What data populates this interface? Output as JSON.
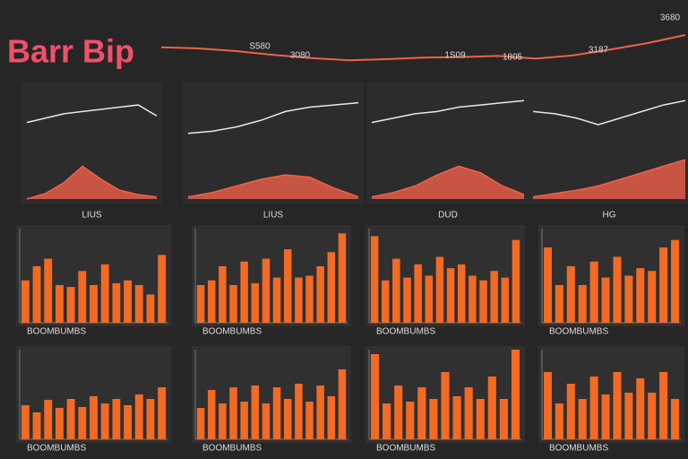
{
  "title": "Barr Bip",
  "chart_data": [
    {
      "type": "line",
      "ylim": [
        0,
        100
      ],
      "annotations": [
        "3680",
        "S580",
        "3080",
        "1S09",
        "1805",
        "3187"
      ],
      "series": [
        {
          "color": "#f0604a",
          "values": [
            62,
            60,
            55,
            48,
            42,
            38,
            40,
            43,
            44,
            46,
            41,
            47,
            58,
            70,
            85
          ]
        }
      ]
    },
    {
      "type": "line",
      "ylim": [
        0,
        100
      ],
      "xlabel": "LIUS",
      "series": [
        {
          "color": "#e8e8e8",
          "values": [
            70,
            74,
            78,
            80,
            82,
            84,
            86,
            76
          ]
        },
        {
          "color": "#f0604a",
          "fill": true,
          "values": [
            0,
            5,
            15,
            30,
            18,
            8,
            4,
            2
          ]
        }
      ]
    },
    {
      "type": "line",
      "ylim": [
        0,
        100
      ],
      "xlabel": "LIUS",
      "series": [
        {
          "color": "#e8e8e8",
          "values": [
            60,
            62,
            66,
            72,
            80,
            84,
            86,
            88
          ]
        },
        {
          "color": "#f0604a",
          "fill": true,
          "values": [
            2,
            6,
            12,
            18,
            22,
            20,
            10,
            2
          ]
        }
      ]
    },
    {
      "type": "line",
      "ylim": [
        0,
        100
      ],
      "xlabel": "DUD",
      "series": [
        {
          "color": "#e8e8e8",
          "values": [
            70,
            74,
            78,
            80,
            84,
            86,
            88,
            90
          ]
        },
        {
          "color": "#f0604a",
          "fill": true,
          "values": [
            2,
            6,
            12,
            22,
            30,
            24,
            12,
            4
          ]
        }
      ]
    },
    {
      "type": "line",
      "ylim": [
        0,
        100
      ],
      "xlabel": "HG",
      "series": [
        {
          "color": "#e8e8e8",
          "values": [
            80,
            78,
            74,
            68,
            74,
            80,
            86,
            90
          ]
        },
        {
          "color": "#f0604a",
          "fill": true,
          "values": [
            2,
            5,
            8,
            12,
            18,
            24,
            30,
            36
          ]
        }
      ]
    },
    {
      "type": "bar",
      "ylim": [
        0,
        100
      ],
      "color": "#f26a24",
      "xlabel": "BOOMBUMBS",
      "values": [
        45,
        60,
        68,
        40,
        38,
        55,
        40,
        62,
        42,
        45,
        40,
        30,
        72
      ]
    },
    {
      "type": "bar",
      "ylim": [
        0,
        100
      ],
      "color": "#f26a24",
      "xlabel": "BOOMBUMBS",
      "values": [
        40,
        45,
        60,
        40,
        65,
        42,
        68,
        48,
        78,
        48,
        50,
        60,
        75,
        95
      ]
    },
    {
      "type": "bar",
      "ylim": [
        0,
        100
      ],
      "color": "#f26a24",
      "xlabel": "BOOMBUMBS",
      "values": [
        92,
        45,
        68,
        48,
        62,
        50,
        70,
        58,
        62,
        50,
        45,
        55,
        48,
        88
      ]
    },
    {
      "type": "bar",
      "ylim": [
        0,
        100
      ],
      "color": "#f26a24",
      "xlabel": "BOOMBUMBS",
      "values": [
        80,
        40,
        60,
        40,
        65,
        48,
        70,
        50,
        58,
        55,
        80,
        88
      ]
    },
    {
      "type": "bar",
      "ylim": [
        0,
        100
      ],
      "color": "#f26a24",
      "xlabel": "BOOMBUMBS",
      "values": [
        38,
        30,
        44,
        35,
        45,
        36,
        48,
        40,
        45,
        38,
        50,
        45,
        58
      ]
    },
    {
      "type": "bar",
      "ylim": [
        0,
        100
      ],
      "color": "#f26a24",
      "xlabel": "BOOMBUMBS",
      "values": [
        35,
        55,
        40,
        58,
        42,
        60,
        40,
        58,
        45,
        62,
        42,
        60,
        48,
        78
      ]
    },
    {
      "type": "bar",
      "ylim": [
        0,
        100
      ],
      "color": "#f26a24",
      "xlabel": "BOOMBUMBS",
      "values": [
        95,
        40,
        60,
        42,
        58,
        45,
        75,
        48,
        58,
        45,
        70,
        45,
        100
      ]
    },
    {
      "type": "bar",
      "ylim": [
        0,
        100
      ],
      "color": "#f26a24",
      "xlabel": "BOOMBUMBS",
      "values": [
        75,
        40,
        62,
        45,
        70,
        50,
        75,
        52,
        68,
        52,
        75,
        45
      ]
    }
  ]
}
